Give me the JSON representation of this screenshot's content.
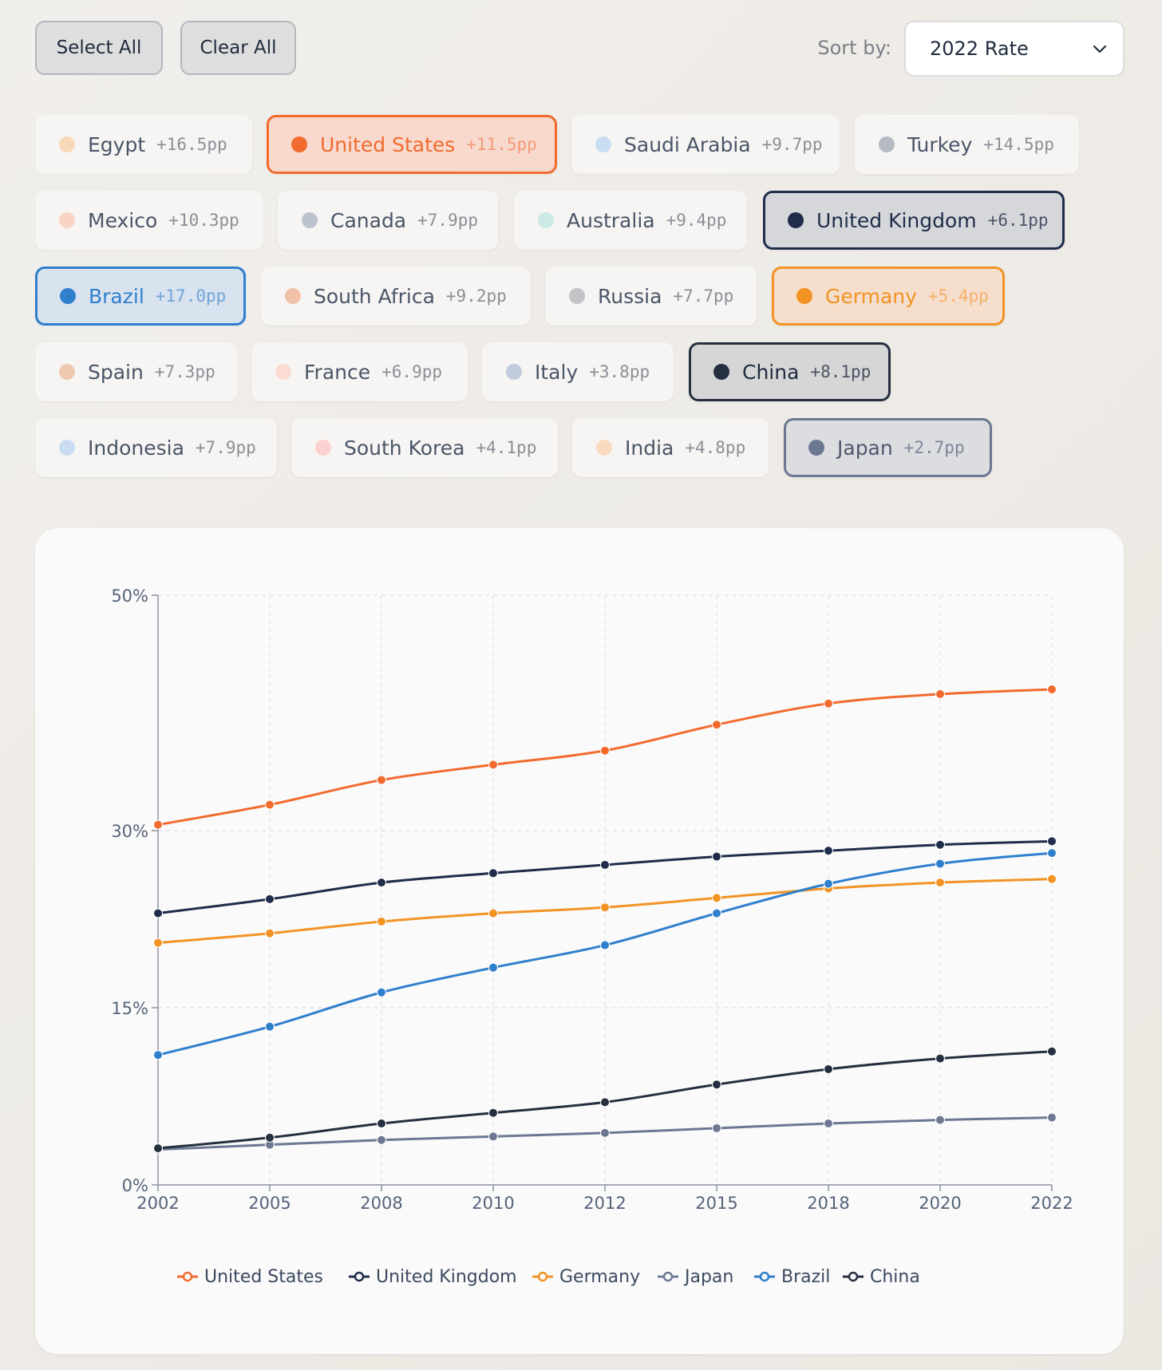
{
  "toolbar": {
    "select_all_label": "Select All",
    "clear_all_label": "Clear All",
    "sort_label": "Sort by:",
    "sort_value": "2022 Rate"
  },
  "chips": [
    {
      "name": "Egypt",
      "delta": "+16.5pp",
      "color": "#f7d9b8",
      "selected": false
    },
    {
      "name": "United States",
      "delta": "+11.5pp",
      "color": "#f26a2e",
      "selected": true
    },
    {
      "name": "Saudi Arabia",
      "delta": "+9.7pp",
      "color": "#c9def2",
      "selected": false
    },
    {
      "name": "Turkey",
      "delta": "+14.5pp",
      "color": "#b5bac3",
      "selected": false
    },
    {
      "name": "Mexico",
      "delta": "+10.3pp",
      "color": "#fbd3c5",
      "selected": false
    },
    {
      "name": "Canada",
      "delta": "+7.9pp",
      "color": "#bcc3cf",
      "selected": false
    },
    {
      "name": "Australia",
      "delta": "+9.4pp",
      "color": "#cbeae5",
      "selected": false
    },
    {
      "name": "United Kingdom",
      "delta": "+6.1pp",
      "color": "#1f2d4a",
      "selected": true
    },
    {
      "name": "Brazil",
      "delta": "+17.0pp",
      "color": "#2f7fcc",
      "selected": true
    },
    {
      "name": "South Africa",
      "delta": "+9.2pp",
      "color": "#f2c1aa",
      "selected": false
    },
    {
      "name": "Russia",
      "delta": "+7.7pp",
      "color": "#c2c4c8",
      "selected": false
    },
    {
      "name": "Germany",
      "delta": "+5.4pp",
      "color": "#f29324",
      "selected": true
    },
    {
      "name": "Spain",
      "delta": "+7.3pp",
      "color": "#f0c8b0",
      "selected": false
    },
    {
      "name": "France",
      "delta": "+6.9pp",
      "color": "#fbdcd3",
      "selected": false
    },
    {
      "name": "Italy",
      "delta": "+3.8pp",
      "color": "#c2cbdc",
      "selected": false
    },
    {
      "name": "China",
      "delta": "+8.1pp",
      "color": "#262f3f",
      "selected": true
    },
    {
      "name": "Indonesia",
      "delta": "+7.9pp",
      "color": "#cadcf1",
      "selected": false
    },
    {
      "name": "South Korea",
      "delta": "+4.1pp",
      "color": "#fcd1cf",
      "selected": false
    },
    {
      "name": "India",
      "delta": "+4.8pp",
      "color": "#f9dcc0",
      "selected": false
    },
    {
      "name": "Japan",
      "delta": "+2.7pp",
      "color": "#6c7892",
      "selected": true
    }
  ],
  "chart_data": {
    "type": "line",
    "x": [
      "2002",
      "2005",
      "2008",
      "2010",
      "2012",
      "2015",
      "2018",
      "2020",
      "2022"
    ],
    "y_ticks": [
      0,
      15,
      30,
      50
    ],
    "y_tick_labels": [
      "0%",
      "15%",
      "30%",
      "50%"
    ],
    "ylim": [
      0,
      50
    ],
    "grid": true,
    "legend_position": "bottom",
    "series": [
      {
        "name": "United States",
        "color": "#f26a2e",
        "values": [
          30.5,
          32.2,
          34.3,
          35.6,
          36.8,
          39.0,
          40.8,
          41.6,
          42.0
        ]
      },
      {
        "name": "United Kingdom",
        "color": "#1f2d4a",
        "values": [
          23.0,
          24.2,
          25.6,
          26.4,
          27.1,
          27.8,
          28.3,
          28.8,
          29.1
        ]
      },
      {
        "name": "Germany",
        "color": "#f29324",
        "values": [
          20.5,
          21.3,
          22.3,
          23.0,
          23.5,
          24.3,
          25.1,
          25.6,
          25.9
        ]
      },
      {
        "name": "Japan",
        "color": "#6c7892",
        "values": [
          3.0,
          3.4,
          3.8,
          4.1,
          4.4,
          4.8,
          5.2,
          5.5,
          5.7
        ]
      },
      {
        "name": "Brazil",
        "color": "#2f7fcc",
        "values": [
          11.0,
          13.4,
          16.3,
          18.4,
          20.3,
          23.0,
          25.5,
          27.2,
          28.1
        ]
      },
      {
        "name": "China",
        "color": "#262f3f",
        "values": [
          3.1,
          4.0,
          5.2,
          6.1,
          7.0,
          8.5,
          9.8,
          10.7,
          11.3
        ]
      }
    ]
  }
}
